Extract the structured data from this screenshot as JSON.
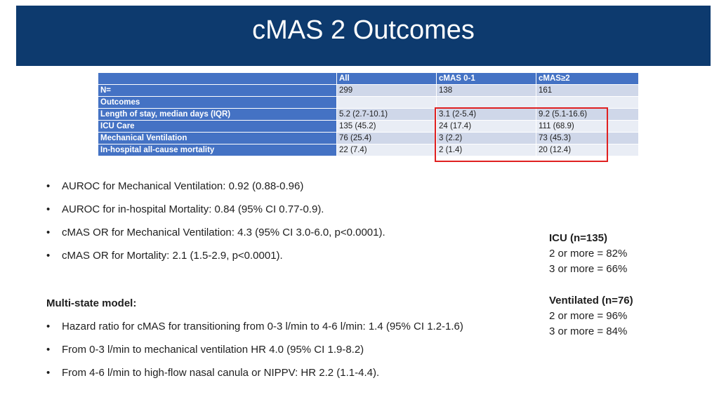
{
  "title": "cMAS 2 Outcomes",
  "table": {
    "header": [
      "",
      "All",
      "cMAS 0-1",
      "cMAS≥2"
    ],
    "rows": [
      {
        "label": "N=",
        "values": [
          "299",
          "138",
          "161"
        ]
      },
      {
        "label": "Outcomes",
        "values": [
          "",
          "",
          ""
        ]
      },
      {
        "label": "Length of stay, median days (IQR)",
        "values": [
          "5.2 (2.7-10.1)",
          "3.1 (2-5.4)",
          "9.2 (5.1-16.6)"
        ]
      },
      {
        "label": "ICU Care",
        "values": [
          "135 (45.2)",
          "24 (17.4)",
          "111 (68.9)"
        ]
      },
      {
        "label": "Mechanical Ventilation",
        "values": [
          "76 (25.4)",
          "3 (2.2)",
          "73 (45.3)"
        ]
      },
      {
        "label": "In-hospital all-cause mortality",
        "values": [
          "22 (7.4)",
          "2 (1.4)",
          "20 (12.4)"
        ]
      }
    ]
  },
  "bullets_top": [
    "AUROC for Mechanical Ventilation: 0.92 (0.88-0.96)",
    "AUROC for in-hospital Mortality: 0.84 (95% CI 0.77-0.9).",
    "cMAS OR for Mechanical Ventilation: 4.3 (95% CI 3.0-6.0, p<0.0001).",
    "cMAS OR for Mortality: 2.1 (1.5-2.9, p<0.0001)."
  ],
  "multistate": {
    "heading": "Multi-state model:",
    "bullets": [
      "Hazard ratio for cMAS for transitioning from 0-3 l/min to 4-6 l/min:  1.4 (95% CI 1.2-1.6)",
      "From 0-3 l/min to mechanical ventilation HR 4.0 (95% CI 1.9-8.2)",
      "From 4-6 l/min to high-flow nasal canula or NIPPV: HR 2.2 (1.1-4.4)."
    ]
  },
  "side": {
    "icu": {
      "heading": "ICU (n=135)",
      "lines": [
        "2 or more = 82%",
        "3 or more = 66%"
      ]
    },
    "ventilated": {
      "heading": "Ventilated (n=76)",
      "lines": [
        "2 or more = 96%",
        "3 or more = 84%"
      ]
    }
  },
  "colors": {
    "title_bar": "#0d3a6e",
    "table_header": "#4472c4",
    "band_dark": "#cfd7e9",
    "band_light": "#e9edf5",
    "highlight": "#e02020"
  }
}
